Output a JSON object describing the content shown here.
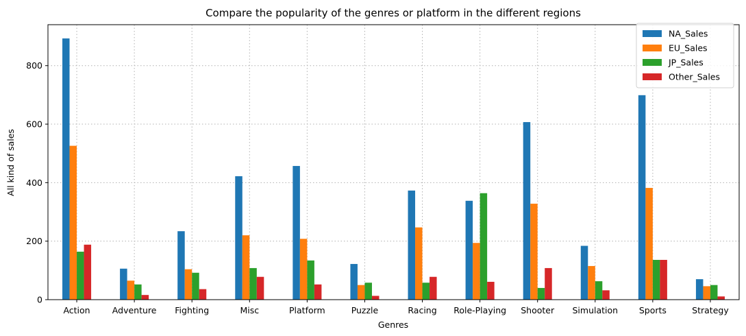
{
  "chart_data": {
    "type": "bar",
    "title": "Compare the popularity of the genres or platform in the different regions",
    "xlabel": "Genres",
    "ylabel": "All kind of sales",
    "ylim": [
      0,
      940
    ],
    "yticks": [
      0,
      200,
      400,
      600,
      800
    ],
    "grid": true,
    "legend_position": "top-right",
    "categories": [
      "Action",
      "Adventure",
      "Fighting",
      "Misc",
      "Platform",
      "Puzzle",
      "Racing",
      "Role-Playing",
      "Shooter",
      "Simulation",
      "Sports",
      "Strategy"
    ],
    "series": [
      {
        "name": "NA_Sales",
        "color": "#1f77b4",
        "values": [
          893,
          106,
          234,
          422,
          457,
          122,
          373,
          338,
          607,
          184,
          699,
          70
        ]
      },
      {
        "name": "EU_Sales",
        "color": "#ff7f0e",
        "values": [
          526,
          65,
          104,
          220,
          208,
          50,
          247,
          194,
          328,
          115,
          382,
          46
        ]
      },
      {
        "name": "JP_Sales",
        "color": "#2ca02c",
        "values": [
          164,
          52,
          92,
          108,
          134,
          58,
          58,
          364,
          40,
          63,
          136,
          50
        ]
      },
      {
        "name": "Other_Sales",
        "color": "#d62728",
        "values": [
          188,
          16,
          36,
          78,
          52,
          13,
          78,
          61,
          108,
          32,
          136,
          11
        ]
      }
    ]
  }
}
